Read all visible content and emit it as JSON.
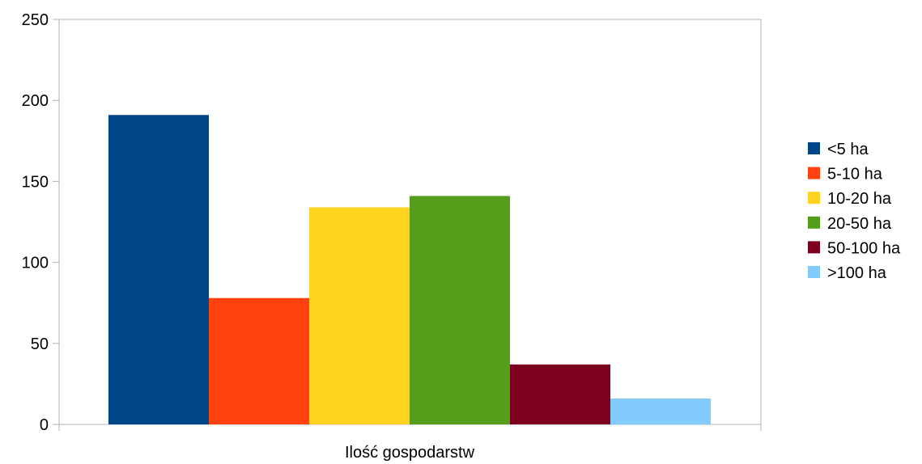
{
  "chart_data": {
    "type": "bar",
    "title": "",
    "categories": [
      "Ilość gospodarstw"
    ],
    "series": [
      {
        "name": "<5 ha",
        "values": [
          191
        ],
        "color": "#004586"
      },
      {
        "name": "5-10 ha",
        "values": [
          78
        ],
        "color": "#ff420e"
      },
      {
        "name": "10-20 ha",
        "values": [
          134
        ],
        "color": "#ffd320"
      },
      {
        "name": "20-50 ha",
        "values": [
          141
        ],
        "color": "#579d1c"
      },
      {
        "name": "50-100 ha",
        "values": [
          37
        ],
        "color": "#7e0021"
      },
      {
        "name": ">100 ha",
        "values": [
          16
        ],
        "color": "#83caff"
      }
    ],
    "xlabel": "",
    "ylabel": "",
    "ylim": [
      0,
      250
    ],
    "yticks": [
      0,
      50,
      100,
      150,
      200,
      250
    ],
    "grid": false,
    "legend_position": "right"
  }
}
